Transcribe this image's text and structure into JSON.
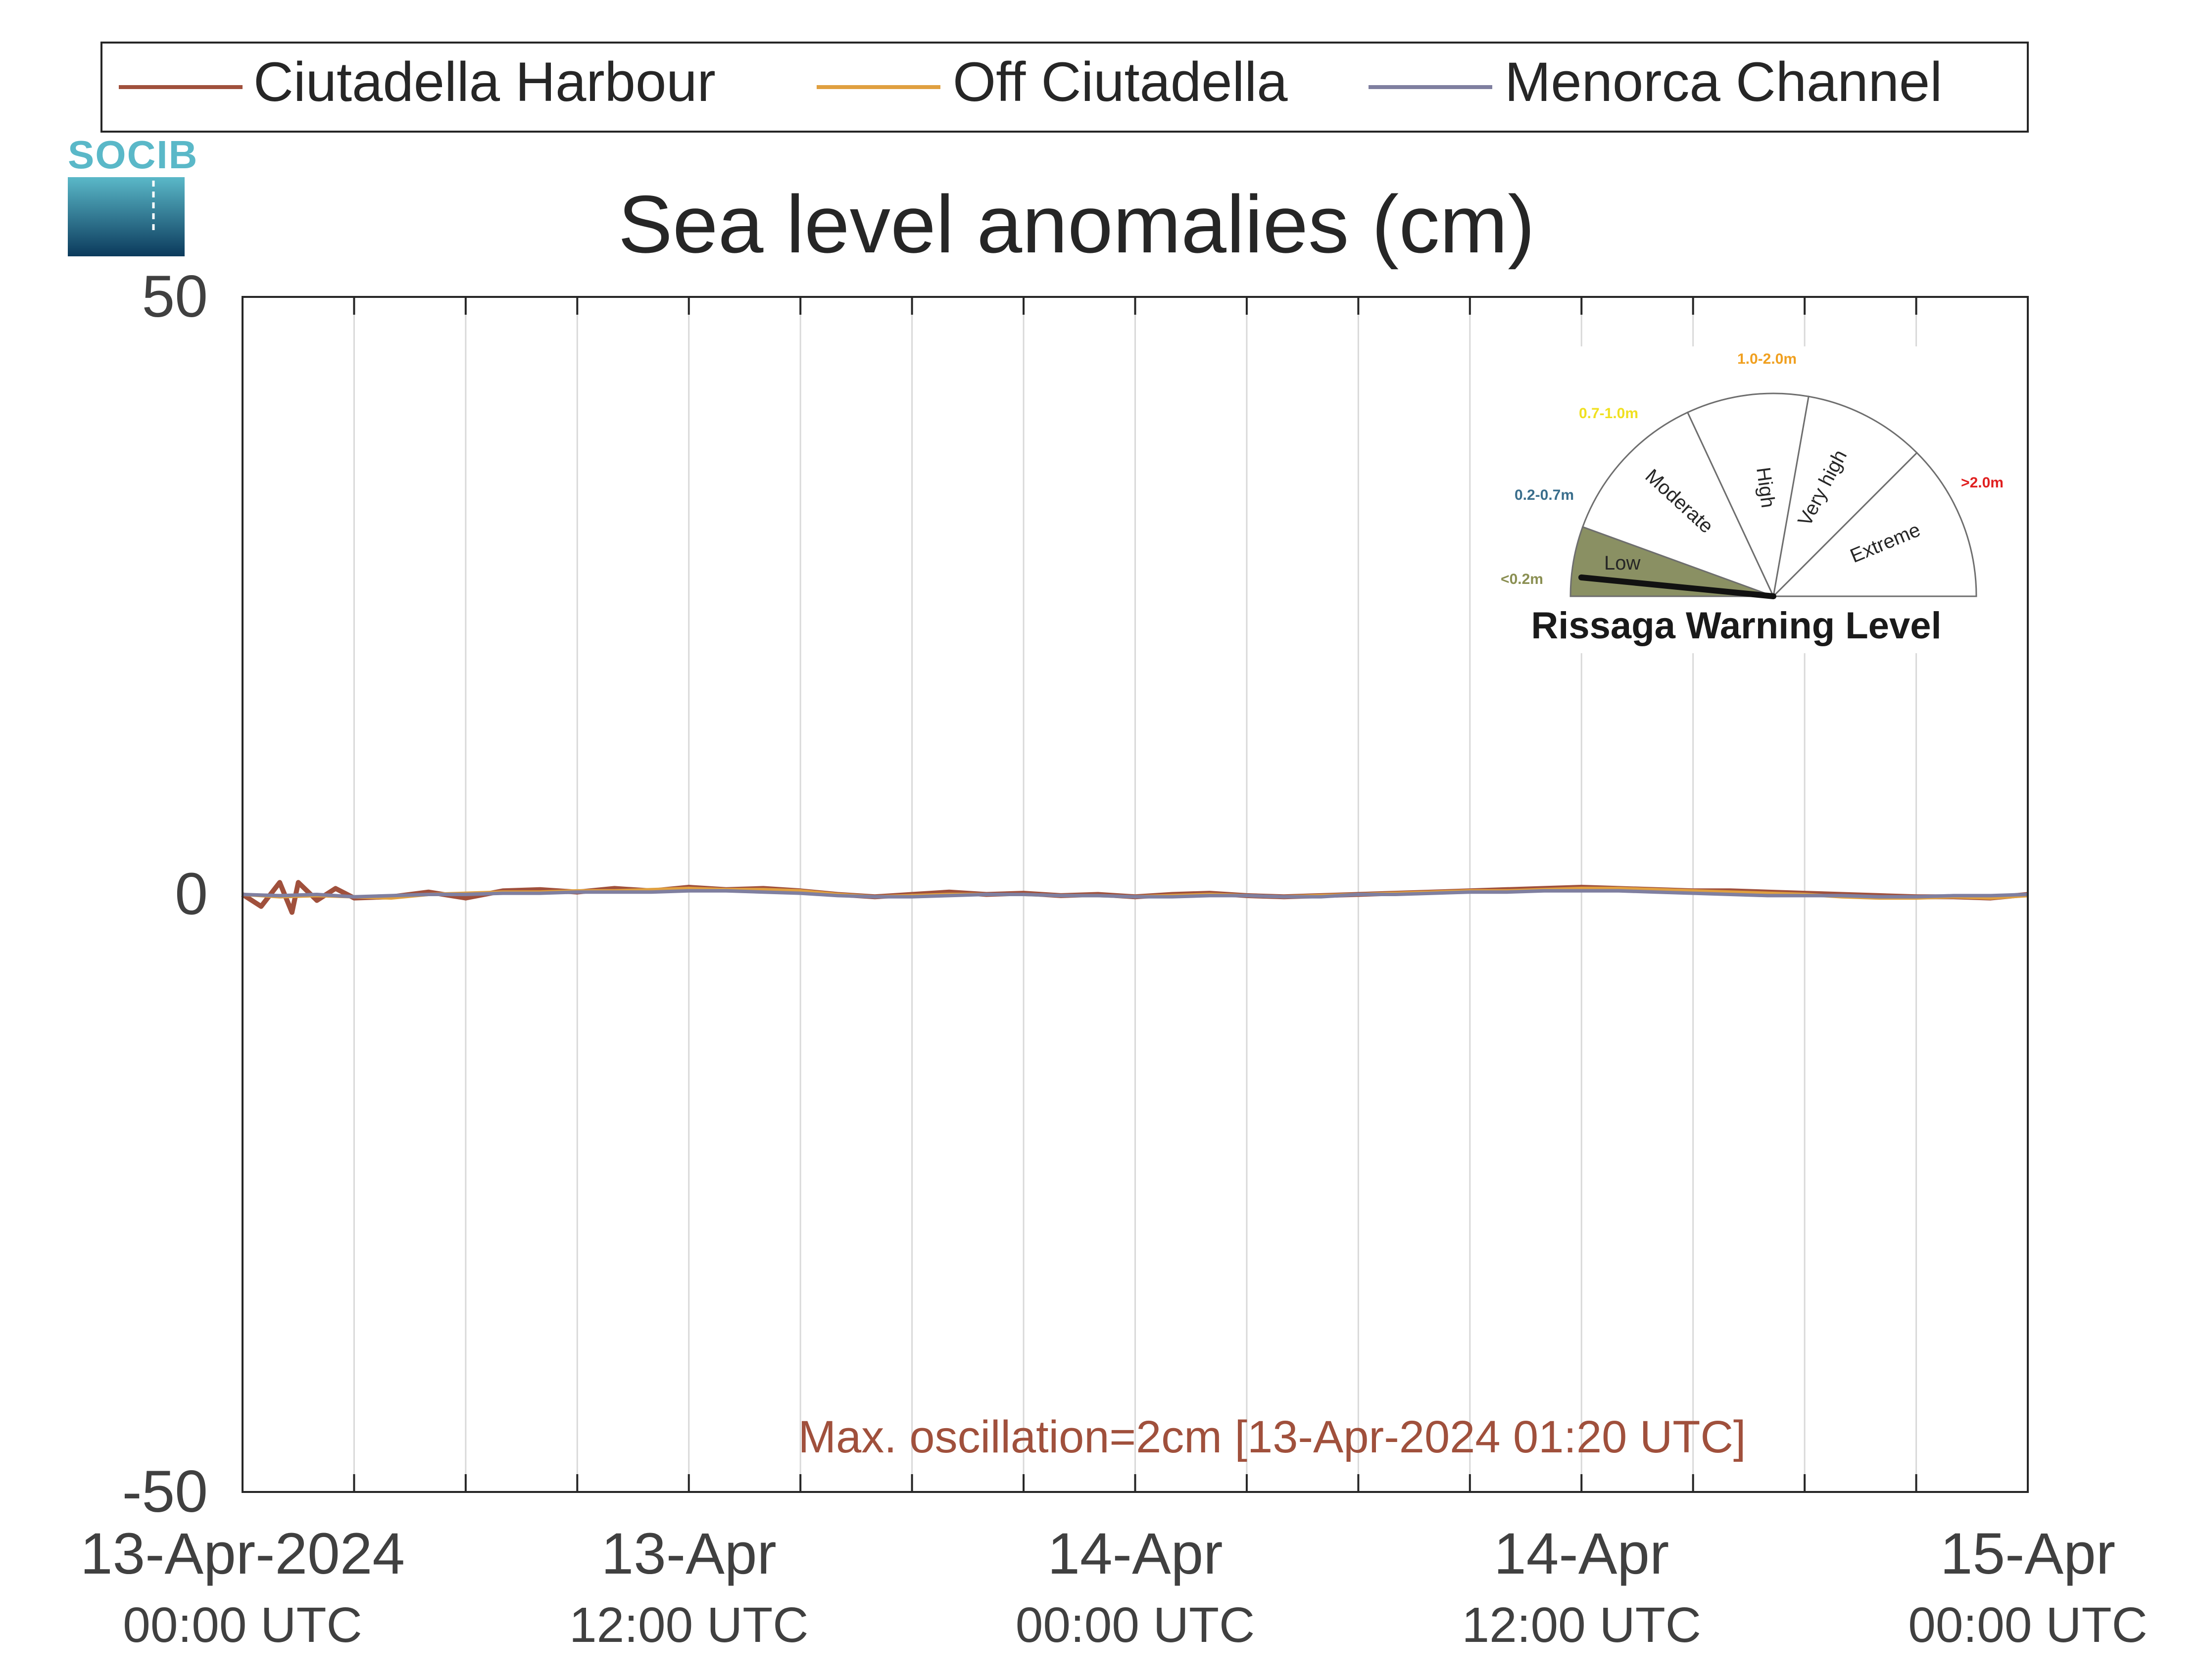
{
  "chart_data": {
    "type": "line",
    "title": "Sea level anomalies (cm)",
    "xlabel": "",
    "ylabel": "",
    "ylim": [
      -50,
      50
    ],
    "yticks": [
      -50,
      0,
      50
    ],
    "x_range": [
      "13-Apr-2024 00:00 UTC",
      "15-Apr-2024 00:00 UTC"
    ],
    "x_ticks": [
      {
        "hours": 0,
        "line1": "13-Apr-2024",
        "line2": "00:00 UTC"
      },
      {
        "hours": 12,
        "line1": "13-Apr",
        "line2": "12:00 UTC"
      },
      {
        "hours": 24,
        "line1": "14-Apr",
        "line2": "00:00 UTC"
      },
      {
        "hours": 36,
        "line1": "14-Apr",
        "line2": "12:00 UTC"
      },
      {
        "hours": 48,
        "line1": "15-Apr",
        "line2": "00:00 UTC"
      }
    ],
    "grid_hours": [
      3,
      6,
      9,
      12,
      15,
      18,
      21,
      24,
      27,
      30,
      33,
      36,
      39,
      42,
      45
    ],
    "grid": true,
    "legend_position": "top",
    "series": [
      {
        "name": "Ciutadella Harbour",
        "color": "#a0503c",
        "hours": [
          0,
          0.5,
          1,
          1.33,
          1.5,
          2,
          2.5,
          3,
          4,
          5,
          6,
          7,
          8,
          9,
          10,
          11,
          12,
          13,
          14,
          15,
          16,
          17,
          18,
          19,
          20,
          21,
          22,
          23,
          24,
          25,
          26,
          27,
          28,
          29,
          30,
          31,
          32,
          33,
          34,
          35,
          36,
          37,
          38,
          39,
          40,
          41,
          42,
          43,
          44,
          45,
          46,
          47,
          48
        ],
        "values": [
          0,
          -1,
          1,
          -1.5,
          1,
          -0.5,
          0.5,
          -0.3,
          -0.2,
          0.2,
          -0.3,
          0.3,
          0.4,
          0.2,
          0.5,
          0.3,
          0.6,
          0.4,
          0.5,
          0.3,
          0,
          -0.2,
          0,
          0.2,
          0,
          0.1,
          -0.1,
          0,
          -0.2,
          0,
          0.1,
          -0.1,
          -0.2,
          -0.1,
          0,
          0.1,
          0.2,
          0.3,
          0.4,
          0.5,
          0.6,
          0.5,
          0.4,
          0.3,
          0.3,
          0.2,
          0.1,
          0,
          -0.1,
          -0.2,
          -0.2,
          -0.3,
          0
        ]
      },
      {
        "name": "Off Ciutadella",
        "color": "#e0a040",
        "hours": [
          0,
          1,
          2,
          3,
          4,
          5,
          6,
          7,
          8,
          9,
          10,
          11,
          12,
          13,
          14,
          15,
          16,
          17,
          18,
          19,
          20,
          21,
          22,
          23,
          24,
          25,
          26,
          27,
          28,
          29,
          30,
          31,
          32,
          33,
          34,
          35,
          36,
          37,
          38,
          39,
          40,
          41,
          42,
          43,
          44,
          45,
          46,
          47,
          48
        ],
        "values": [
          0,
          -0.2,
          -0.1,
          -0.2,
          -0.3,
          0,
          0.1,
          0.2,
          0.2,
          0.3,
          0.3,
          0.4,
          0.5,
          0.4,
          0.4,
          0.3,
          0,
          -0.2,
          -0.1,
          0,
          0,
          0,
          -0.1,
          -0.1,
          -0.2,
          -0.1,
          0,
          -0.1,
          -0.2,
          -0.1,
          0,
          0.1,
          0.2,
          0.3,
          0.3,
          0.4,
          0.5,
          0.5,
          0.4,
          0.3,
          0.2,
          0.1,
          0,
          -0.2,
          -0.3,
          -0.3,
          -0.2,
          -0.3,
          -0.1
        ]
      },
      {
        "name": "Menorca Channel",
        "color": "#7f7fa0",
        "hours": [
          0,
          1,
          2,
          3,
          4,
          5,
          6,
          7,
          8,
          9,
          10,
          11,
          12,
          13,
          14,
          15,
          16,
          17,
          18,
          19,
          20,
          21,
          22,
          23,
          24,
          25,
          26,
          27,
          28,
          29,
          30,
          31,
          32,
          33,
          34,
          35,
          36,
          37,
          38,
          39,
          40,
          41,
          42,
          43,
          44,
          45,
          46,
          47,
          48
        ],
        "values": [
          0,
          -0.1,
          0,
          -0.2,
          -0.1,
          0,
          0,
          0.1,
          0.1,
          0.2,
          0.2,
          0.2,
          0.3,
          0.3,
          0.2,
          0.1,
          -0.1,
          -0.2,
          -0.2,
          -0.1,
          0,
          0,
          -0.1,
          -0.1,
          -0.2,
          -0.2,
          -0.1,
          -0.1,
          -0.2,
          -0.2,
          0,
          0,
          0.1,
          0.2,
          0.2,
          0.3,
          0.3,
          0.3,
          0.2,
          0.1,
          0,
          -0.1,
          -0.1,
          -0.1,
          -0.2,
          -0.2,
          -0.1,
          -0.1,
          0
        ]
      }
    ],
    "annotation": {
      "text": "Max. oscillation=2cm [13-Apr-2024 01:20 UTC]",
      "color": "#a0503c"
    }
  },
  "logo": {
    "text": "SOCIB"
  },
  "gauge": {
    "title": "Rissaga Warning Level",
    "current_level": "Low",
    "needle_fraction": 0.02,
    "segments": [
      {
        "label": "Low",
        "range": "<0.2m",
        "range_color": "#8a8f52",
        "fill": "#8a9063",
        "active": true
      },
      {
        "label": "Moderate",
        "range": "0.2-0.7m",
        "range_color": "#3a6e8c",
        "fill": "#ffffff",
        "active": false
      },
      {
        "label": "High",
        "range": "0.7-1.0m",
        "range_color": "#f0e020",
        "fill": "#ffffff",
        "active": false
      },
      {
        "label": "Very high",
        "range": "1.0-2.0m",
        "range_color": "#f0a020",
        "fill": "#ffffff",
        "active": false
      },
      {
        "label": "Extreme",
        "range": ">2.0m",
        "range_color": "#e02020",
        "fill": "#ffffff",
        "active": false
      }
    ]
  }
}
